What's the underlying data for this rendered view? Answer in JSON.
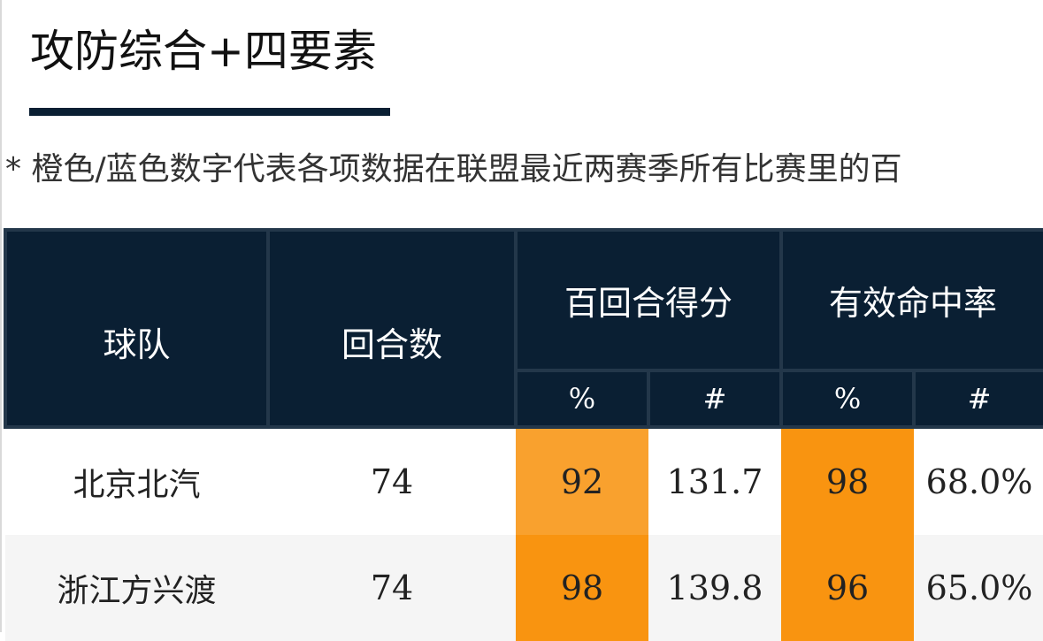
{
  "title": "攻防综合+四要素",
  "note": "* 橙色/蓝色数字代表各项数据在联盟最近两赛季所有比赛里的百",
  "table": {
    "headers": {
      "team": "球队",
      "possessions": "回合数",
      "ortg": "百回合得分",
      "efg": "有效命中率",
      "pct_symbol": "%",
      "num_symbol": "#"
    },
    "rows": [
      {
        "team": "北京北汽",
        "possessions": "74",
        "ortg_pct": "92",
        "ortg_val": "131.7",
        "efg_pct": "98",
        "efg_val": "68.0%"
      },
      {
        "team": "浙江方兴渡",
        "possessions": "74",
        "ortg_pct": "98",
        "ortg_val": "139.8",
        "efg_pct": "96",
        "efg_val": "65.0%"
      }
    ]
  },
  "colors": {
    "header_bg": "#0a1f33",
    "percentile_92": "#f9a12e",
    "percentile_96_98": "#f99410",
    "row_alt_bg": "#f5f5f5"
  }
}
